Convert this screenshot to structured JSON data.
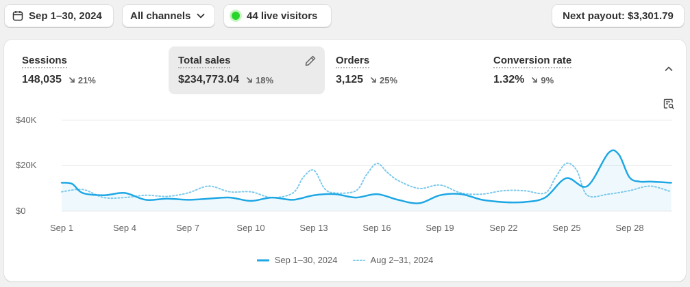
{
  "toolbar": {
    "date_range": "Sep 1–30, 2024",
    "channels": "All channels",
    "live_visitors": "44 live visitors",
    "payout": "Next payout: $3,301.79"
  },
  "metrics": [
    {
      "label": "Sessions",
      "value": "148,035",
      "change": "21%",
      "direction": "down",
      "active": false
    },
    {
      "label": "Total sales",
      "value": "$234,773.04",
      "change": "18%",
      "direction": "down",
      "active": true
    },
    {
      "label": "Orders",
      "value": "3,125",
      "change": "25%",
      "direction": "down",
      "active": false
    },
    {
      "label": "Conversion rate",
      "value": "1.32%",
      "change": "9%",
      "direction": "down",
      "active": false
    }
  ],
  "colors": {
    "primary": "#1ea7e4",
    "comparison": "#7cc9ec",
    "grid": "#ebebeb",
    "live": "#29d52d"
  },
  "icons": [
    "calendar-icon",
    "chevron-down-icon",
    "pencil-icon",
    "chevron-up-icon",
    "explore-report-icon",
    "arrow-down-right-icon"
  ],
  "chart_data": {
    "type": "line",
    "title": "Total sales",
    "y_ticks": [
      "$40K",
      "$20K",
      "$0"
    ],
    "ylim": [
      0,
      40000
    ],
    "x_ticks": [
      "Sep 1",
      "Sep 4",
      "Sep 7",
      "Sep 10",
      "Sep 13",
      "Sep 16",
      "Sep 19",
      "Sep 22",
      "Sep 25",
      "Sep 28"
    ],
    "grid": true,
    "legend_position": "bottom",
    "series": [
      {
        "name": "Sep 1–30, 2024",
        "style": "solid",
        "x": [
          1,
          1.5,
          2,
          3,
          4,
          5,
          6,
          7,
          8,
          9,
          10,
          11,
          12,
          13,
          14,
          15,
          16,
          17,
          18,
          19,
          20,
          21,
          22,
          23,
          24,
          25,
          26,
          27,
          27.5,
          28,
          28.5,
          29,
          30
        ],
        "values": [
          12500,
          12000,
          8000,
          7000,
          8000,
          5000,
          5500,
          5000,
          5500,
          6000,
          4500,
          6000,
          5000,
          7000,
          7500,
          6000,
          7500,
          5000,
          3500,
          7000,
          7500,
          5000,
          4000,
          4000,
          6000,
          14500,
          11000,
          25500,
          25000,
          15000,
          13000,
          13000,
          12500
        ]
      },
      {
        "name": "Aug 2–31, 2024",
        "style": "dotted",
        "x": [
          1,
          2,
          3,
          4,
          5,
          6,
          7,
          8,
          9,
          10,
          11,
          12,
          12.5,
          13,
          13.5,
          14,
          15,
          15.5,
          16,
          16.5,
          17,
          18,
          19,
          20,
          21,
          22,
          23,
          24,
          24.5,
          25,
          25.5,
          26,
          27,
          28,
          29,
          30
        ],
        "values": [
          8500,
          9500,
          6000,
          6000,
          7000,
          6500,
          8000,
          11000,
          8500,
          8500,
          6000,
          8000,
          15000,
          18000,
          10000,
          8000,
          9000,
          16000,
          21000,
          17000,
          13500,
          10000,
          11500,
          8000,
          7500,
          9000,
          9000,
          8000,
          15000,
          21000,
          18000,
          7000,
          7500,
          9000,
          11000,
          8500
        ]
      }
    ]
  }
}
